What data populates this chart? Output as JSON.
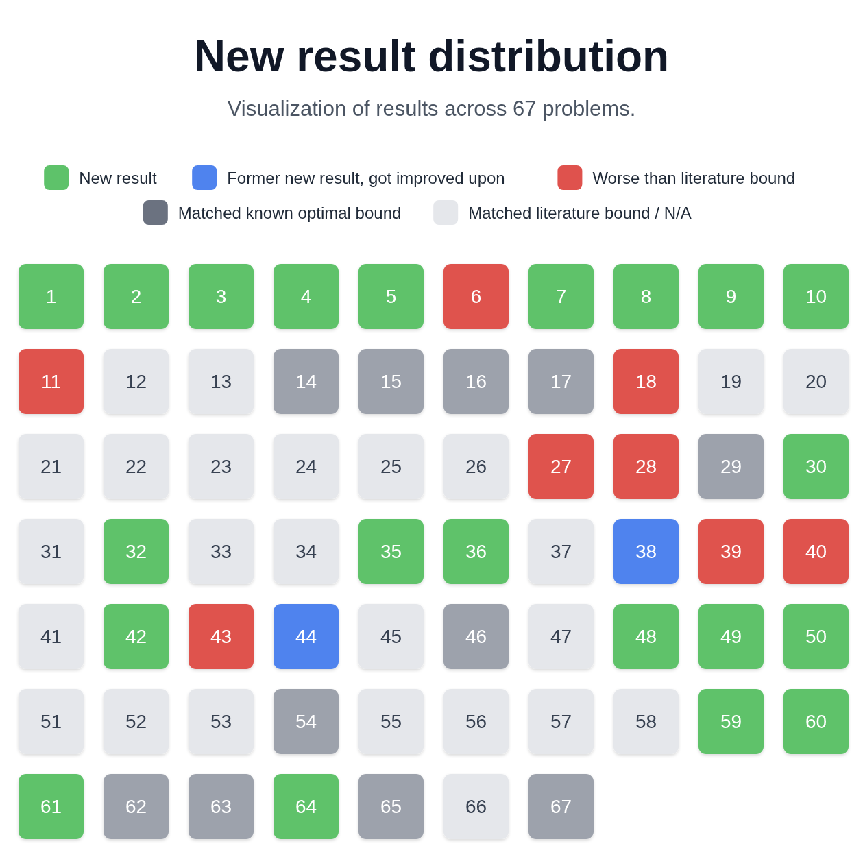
{
  "chart_data": {
    "type": "heatmap",
    "title": "New result distribution",
    "subtitle": "Visualization of results across 67 problems.",
    "categories": [
      null,
      null,
      null,
      null,
      null,
      null,
      null,
      null,
      null,
      null
    ],
    "y_categories": [
      null,
      null,
      null,
      null,
      null,
      null,
      null
    ],
    "cells": [
      [
        1,
        2,
        3,
        4,
        5,
        6,
        7,
        8,
        9,
        10
      ],
      [
        11,
        12,
        13,
        14,
        15,
        16,
        17,
        18,
        19,
        20
      ],
      [
        21,
        22,
        23,
        24,
        25,
        26,
        27,
        28,
        29,
        30
      ],
      [
        31,
        32,
        33,
        34,
        35,
        36,
        37,
        38,
        39,
        40
      ],
      [
        41,
        42,
        43,
        44,
        45,
        46,
        47,
        48,
        49,
        50
      ],
      [
        51,
        52,
        53,
        54,
        55,
        56,
        57,
        58,
        59,
        60
      ],
      [
        61,
        62,
        63,
        64,
        65,
        66,
        67,
        null,
        null,
        null
      ]
    ],
    "data_labels": true,
    "colors": [
      [
        "#5ec26a",
        "#5ec26a",
        "#5ec26a",
        "#5ec26a",
        "#5ec26a",
        "#df524d",
        "#5ec26a",
        "#5ec26a",
        "#5ec26a",
        "#5ec26a"
      ],
      [
        "#df524d",
        "#e5e7eb",
        "#e5e7eb",
        "#9da2ac",
        "#9da2ac",
        "#9da2ac",
        "#9da2ac",
        "#df524d",
        "#e5e7eb",
        "#e5e7eb"
      ],
      [
        "#e5e7eb",
        "#e5e7eb",
        "#e5e7eb",
        "#e5e7eb",
        "#e5e7eb",
        "#e5e7eb",
        "#df524d",
        "#df524d",
        "#9da2ac",
        "#5ec26a"
      ],
      [
        "#e5e7eb",
        "#5ec26a",
        "#e5e7eb",
        "#e5e7eb",
        "#5ec26a",
        "#5ec26a",
        "#e5e7eb",
        "#4f83ee",
        "#df524d",
        "#df524d"
      ],
      [
        "#e5e7eb",
        "#5ec26a",
        "#df524d",
        "#4f83ee",
        "#e5e7eb",
        "#9da2ac",
        "#e5e7eb",
        "#5ec26a",
        "#5ec26a",
        "#5ec26a"
      ],
      [
        "#e5e7eb",
        "#e5e7eb",
        "#e5e7eb",
        "#9da2ac",
        "#e5e7eb",
        "#e5e7eb",
        "#e5e7eb",
        "#e5e7eb",
        "#5ec26a",
        "#5ec26a"
      ],
      [
        "#5ec26a",
        "#9da2ac",
        "#9da2ac",
        "#5ec26a",
        "#9da2ac",
        "#e5e7eb",
        "#9da2ac",
        null,
        null,
        null
      ]
    ],
    "annotations": [
      "New result",
      "Former new result, got improved upon",
      "Worse than literature bound",
      "Matched known optimal bound",
      "Matched literature bound / N/A"
    ]
  }
}
